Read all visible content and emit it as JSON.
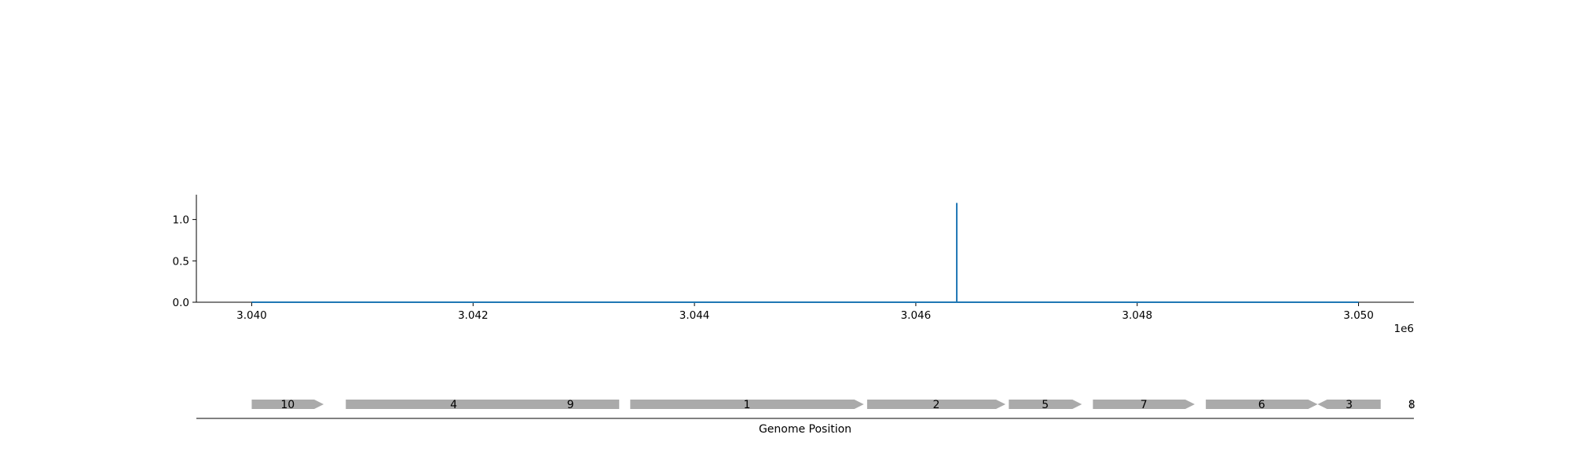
{
  "chart_data": [
    {
      "type": "line",
      "title": "",
      "xlabel": "",
      "ylabel": "",
      "x_offset_label": "1e6",
      "xlim": [
        3039500,
        3050500
      ],
      "ylim": [
        0,
        1.3
      ],
      "x_ticks": [
        3040000,
        3042000,
        3044000,
        3046000,
        3048000,
        3050000
      ],
      "x_tick_labels": [
        "3.040",
        "3.042",
        "3.044",
        "3.046",
        "3.048",
        "3.050"
      ],
      "y_ticks": [
        0.0,
        0.5,
        1.0
      ],
      "y_tick_labels": [
        "0.0",
        "0.5",
        "1.0"
      ],
      "grid": false,
      "series": [
        {
          "color": "#1f77b4",
          "x": [
            3040000,
            3046370,
            3046370,
            3046370,
            3046370,
            3050000
          ],
          "y": [
            0,
            0,
            1.2,
            1.2,
            0,
            0
          ]
        }
      ]
    },
    {
      "type": "gene-track",
      "xlabel": "Genome Position",
      "xlim": [
        3039500,
        3050500
      ],
      "gene_color": "#aaaaaa",
      "genes": [
        {
          "label": "10",
          "start": 3040000,
          "end": 3040650,
          "strand": "+"
        },
        {
          "label": "4",
          "start": 3040850,
          "end": 3042800,
          "strand": "+"
        },
        {
          "label": "9",
          "start": 3042440,
          "end": 3043320,
          "strand": "-"
        },
        {
          "label": "1",
          "start": 3043420,
          "end": 3045530,
          "strand": "+"
        },
        {
          "label": "2",
          "start": 3045560,
          "end": 3046810,
          "strand": "+"
        },
        {
          "label": "5",
          "start": 3046840,
          "end": 3047500,
          "strand": "+"
        },
        {
          "label": "7",
          "start": 3047600,
          "end": 3048520,
          "strand": "+"
        },
        {
          "label": "6",
          "start": 3048620,
          "end": 3049630,
          "strand": "+"
        },
        {
          "label": "3",
          "start": 3049630,
          "end": 3050200,
          "strand": "-"
        },
        {
          "label": "8",
          "start": 3050470,
          "end": 3050490,
          "strand": "+"
        }
      ]
    }
  ]
}
